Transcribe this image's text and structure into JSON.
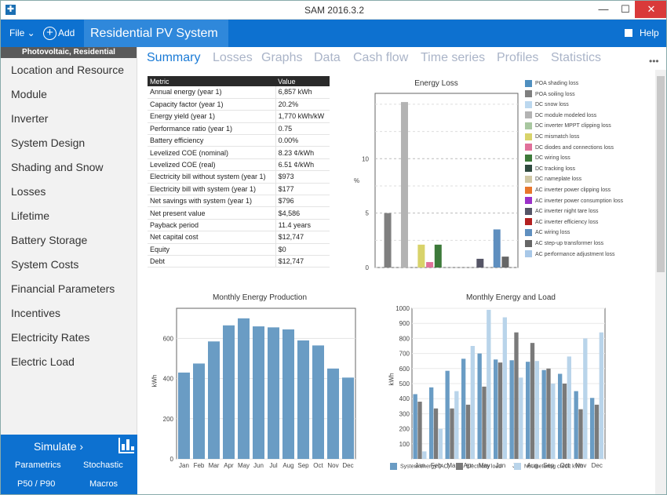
{
  "window": {
    "title": "SAM 2016.3.2",
    "min_glyph": "—",
    "max_glyph": "☐",
    "close_glyph": "✕"
  },
  "menubar": {
    "file_label": "File ⌄",
    "add_label": "Add",
    "add_glyph": "+",
    "case_label": "Residential PV System ⌄",
    "help_label": "Help"
  },
  "sidebar": {
    "config_label": "Photovoltaic, Residential",
    "items": [
      "Location and Resource",
      "Module",
      "Inverter",
      "System Design",
      "Shading and Snow",
      "Losses",
      "Lifetime",
      "Battery Storage",
      "System Costs",
      "Financial Parameters",
      "Incentives",
      "Electricity Rates",
      "Electric Load"
    ],
    "simulate_label": "Simulate ›",
    "parametrics_label": "Parametrics",
    "stochastic_label": "Stochastic",
    "p50_label": "P50 / P90",
    "macros_label": "Macros"
  },
  "tabs": [
    "Summary",
    "Losses",
    "Graphs",
    "Data",
    "Cash flow",
    "Time series",
    "Profiles",
    "Statistics"
  ],
  "more_glyph": "•••",
  "metrics": {
    "headers": [
      "Metric",
      "Value"
    ],
    "rows": [
      [
        "Annual energy (year 1)",
        "6,857 kWh"
      ],
      [
        "Capacity factor (year 1)",
        "20.2%"
      ],
      [
        "Energy yield (year 1)",
        "1,770 kWh/kW"
      ],
      [
        "Performance ratio (year 1)",
        "0.75"
      ],
      [
        "Battery efficiency",
        "0.00%"
      ],
      [
        "Levelized COE (nominal)",
        "8.23 ¢/kWh"
      ],
      [
        "Levelized COE (real)",
        "6.51 ¢/kWh"
      ],
      [
        "Electricity bill without system (year 1)",
        "$973"
      ],
      [
        "Electricity bill with system (year 1)",
        "$177"
      ],
      [
        "Net savings with system (year 1)",
        "$796"
      ],
      [
        "Net present value",
        "$4,586"
      ],
      [
        "Payback period",
        "11.4 years"
      ],
      [
        "Net capital cost",
        "$12,747"
      ],
      [
        "Equity",
        "$0"
      ],
      [
        "Debt",
        "$12,747"
      ]
    ]
  },
  "chart_data": [
    {
      "type": "bar",
      "title": "Energy Loss",
      "ylabel": "%",
      "ylim": [
        0,
        16
      ],
      "yticks": [
        0,
        5,
        10
      ],
      "grid": true,
      "legend_position": "right",
      "categories": [
        "POA shading loss",
        "POA soiling loss",
        "DC snow loss",
        "DC module modeled loss",
        "DC inverter MPPT clipping loss",
        "DC mismatch loss",
        "DC diodes and connections loss",
        "DC wiring loss",
        "DC tracking loss",
        "DC nameplate loss",
        "AC inverter power clipping loss",
        "AC inverter power consumption loss",
        "AC inverter night tare loss",
        "AC inverter efficiency loss",
        "AC wiring loss",
        "AC step-up transformer loss",
        "AC performance adjustment loss"
      ],
      "values": [
        0,
        5.0,
        0,
        15.2,
        0,
        2.1,
        0.5,
        2.1,
        0,
        0,
        0,
        0,
        0.8,
        0,
        3.5,
        1.0,
        0
      ],
      "colors": [
        "#4f8fbf",
        "#7f7f7f",
        "#bcd8ef",
        "#b3b3b3",
        "#a8c7a0",
        "#d8d36a",
        "#e0709a",
        "#3d7a3a",
        "#2f4a3f",
        "#cfc7a3",
        "#e8762c",
        "#9b30c8",
        "#555566",
        "#b32020",
        "#5f8fbf",
        "#666666",
        "#a8c8e8"
      ]
    },
    {
      "type": "bar",
      "title": "Monthly Energy Production",
      "ylabel": "kWh",
      "ylim": [
        0,
        750
      ],
      "yticks": [
        0,
        200,
        400,
        600
      ],
      "grid": true,
      "categories": [
        "Jan",
        "Feb",
        "Mar",
        "Apr",
        "May",
        "Jun",
        "Jul",
        "Aug",
        "Sep",
        "Oct",
        "Nov",
        "Dec"
      ],
      "values": [
        430,
        475,
        585,
        665,
        700,
        660,
        655,
        645,
        590,
        565,
        450,
        405
      ],
      "color": "#6a9cc4"
    },
    {
      "type": "bar",
      "title": "Monthly Energy and Load",
      "ylabel": "kWh",
      "ylim": [
        0,
        1000
      ],
      "yticks": [
        0,
        100,
        200,
        300,
        400,
        500,
        600,
        700,
        800,
        900,
        1000
      ],
      "grid": true,
      "legend_position": "bottom",
      "categories": [
        "Jan",
        "Feb",
        "Mar",
        "Apr",
        "May",
        "Jun",
        "Jul",
        "Aug",
        "Sep",
        "Oct",
        "Nov",
        "Dec"
      ],
      "series": [
        {
          "name": "System energy (AC)",
          "color": "#6a9cc4",
          "values": [
            430,
            475,
            585,
            665,
            700,
            660,
            655,
            645,
            590,
            565,
            450,
            405
          ]
        },
        {
          "name": "Electricity load",
          "color": "#7a7a7a",
          "values": [
            380,
            335,
            335,
            360,
            480,
            640,
            840,
            770,
            600,
            500,
            330,
            360
          ]
        },
        {
          "name": "Net metering credit kWh",
          "color": "#b9d4ea",
          "values": [
            50,
            200,
            450,
            750,
            990,
            940,
            540,
            650,
            500,
            680,
            800,
            840
          ]
        }
      ]
    }
  ]
}
